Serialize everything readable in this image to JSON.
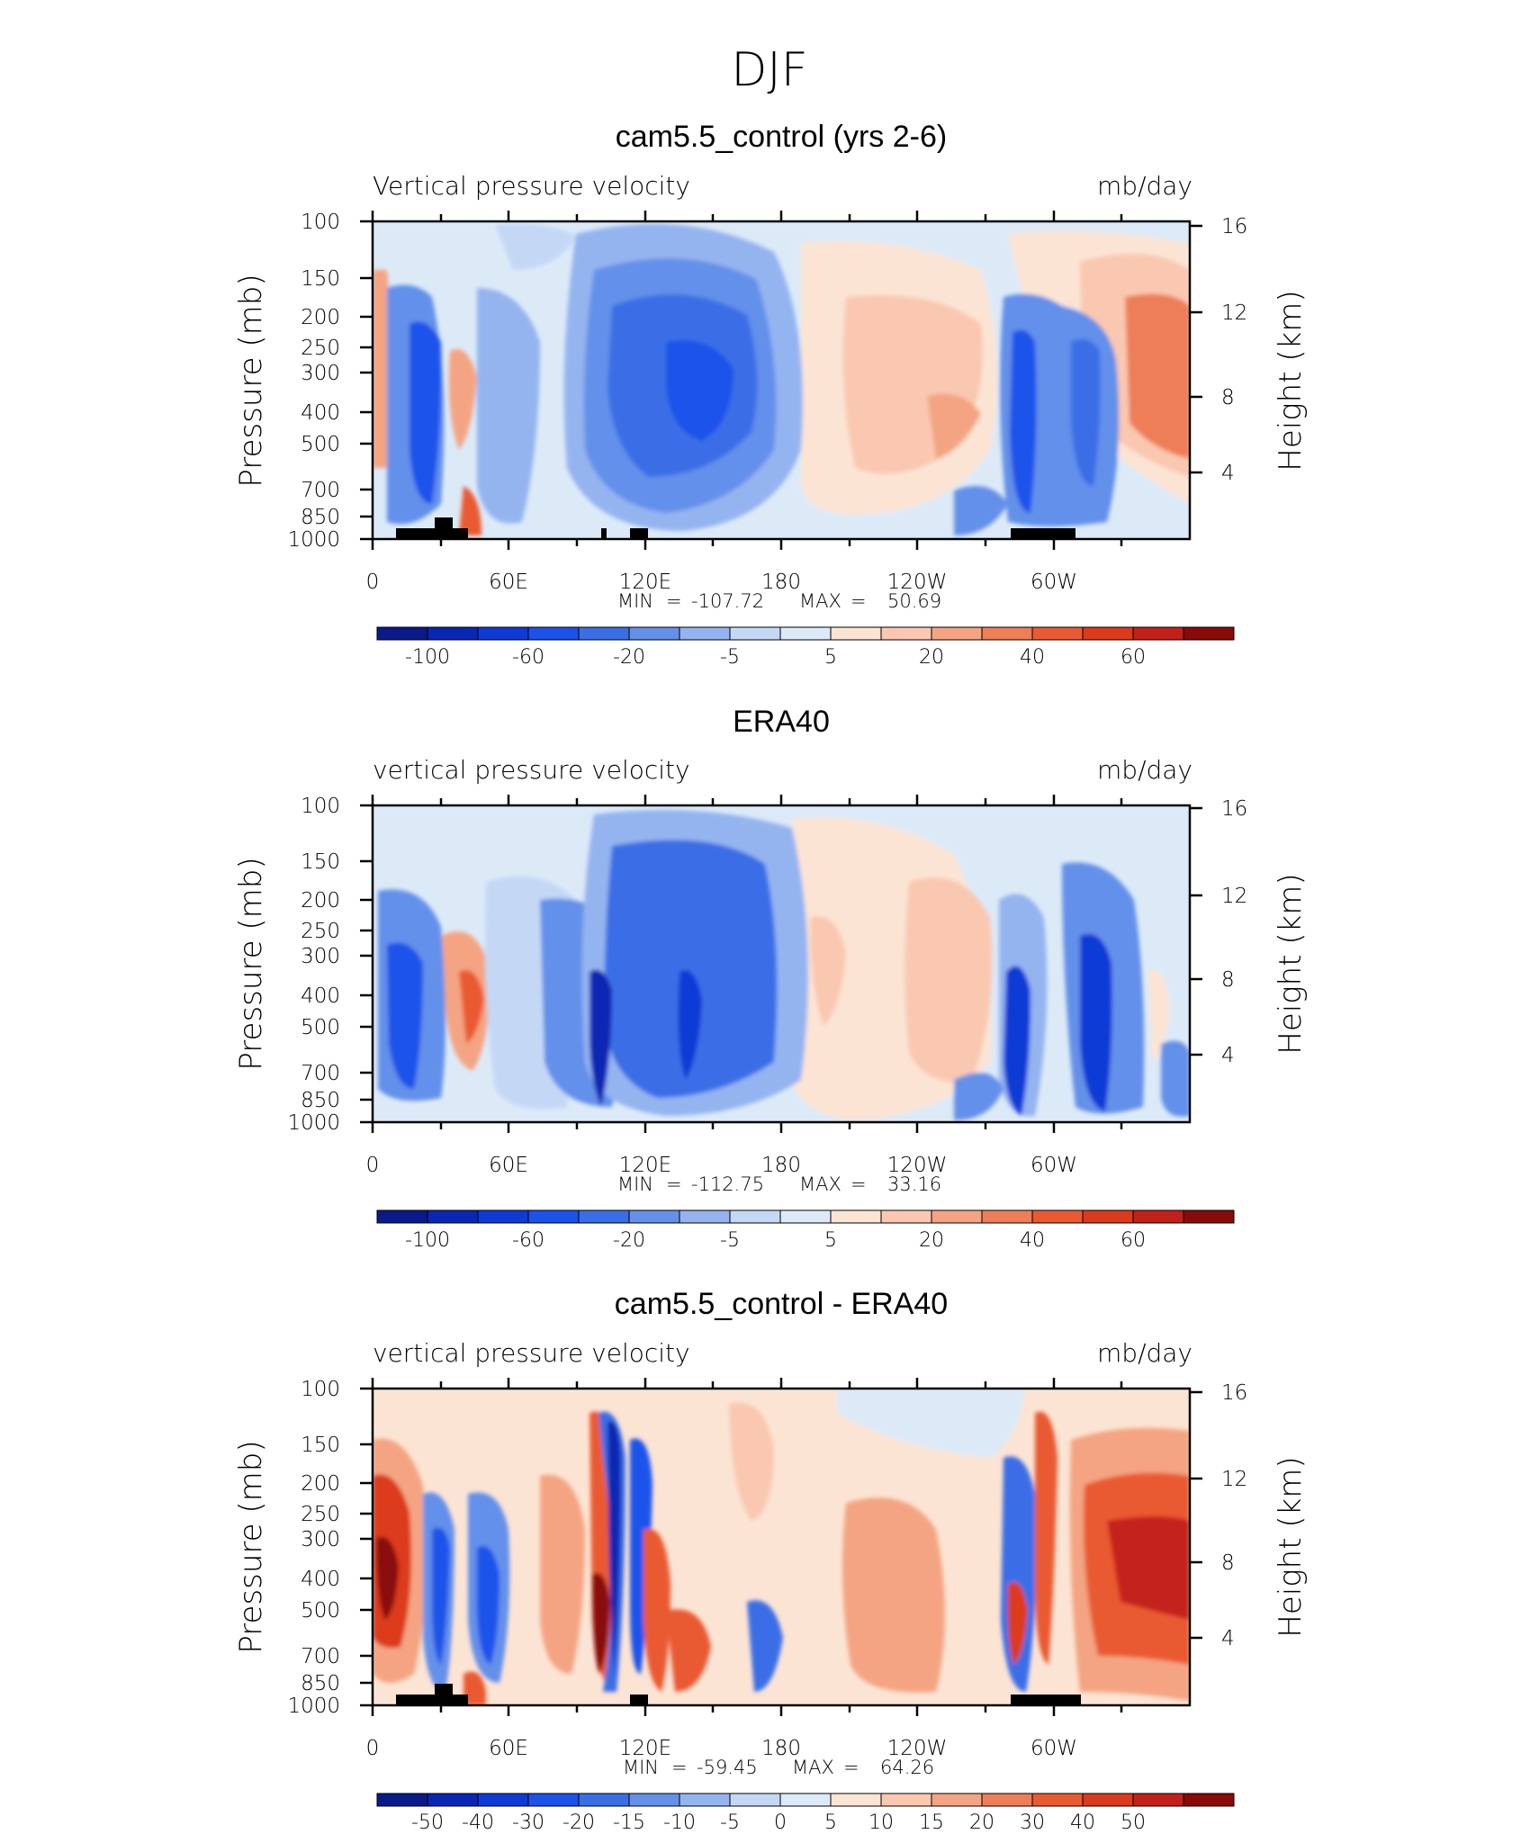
{
  "figure": {
    "title": "DJF"
  },
  "colors": {
    "scale": [
      "#0a1a8a",
      "#0a26b4",
      "#0f3ad6",
      "#1c52ea",
      "#3a6ee6",
      "#6490ea",
      "#94b4f0",
      "#c4d8f6",
      "#dceaf8",
      "#fce4d4",
      "#fac8b0",
      "#f4a482",
      "#ee7e58",
      "#ea5a32",
      "#dc3a1c",
      "#c4201a",
      "#8a0a0a"
    ]
  },
  "chart_data": [
    {
      "type": "heatmap",
      "title": "cam5.5_control (yrs 2-6)",
      "variable_label": "Vertical pressure velocity",
      "units": "mb/day",
      "xlabel": "",
      "ylabel": "Pressure (mb)",
      "ylabel_right": "Height (km)",
      "x_ticks": [
        "0",
        "60E",
        "120E",
        "180",
        "120W",
        "60W"
      ],
      "y_ticks": [
        "100",
        "150",
        "200",
        "250",
        "300",
        "400",
        "500",
        "700",
        "850",
        "1000"
      ],
      "y_ticks_right": [
        "16",
        "12",
        "8",
        "4"
      ],
      "ylim": [
        1000,
        100
      ],
      "y_scale": "log",
      "stats": {
        "min_label": "MIN",
        "min": "-107.72",
        "max_label": "MAX",
        "max": "50.69"
      },
      "colorbar_labels": [
        "-100",
        "-60",
        "-20",
        "-5",
        "5",
        "20",
        "40",
        "60"
      ],
      "cells": [
        {
          "x": 5,
          "y": 400,
          "v": 30
        },
        {
          "x": 25,
          "y": 350,
          "v": -60
        },
        {
          "x": 45,
          "y": 450,
          "v": 15
        },
        {
          "x": 70,
          "y": 500,
          "v": -30
        },
        {
          "x": 130,
          "y": 400,
          "v": -70
        },
        {
          "x": 155,
          "y": 400,
          "v": -90
        },
        {
          "x": 230,
          "y": 400,
          "v": 20
        },
        {
          "x": 255,
          "y": 450,
          "v": 35
        },
        {
          "x": 290,
          "y": 400,
          "v": -75
        },
        {
          "x": 300,
          "y": 400,
          "v": -80
        },
        {
          "x": 345,
          "y": 350,
          "v": 30
        }
      ]
    },
    {
      "type": "heatmap",
      "title": "ERA40",
      "variable_label": "vertical pressure velocity",
      "units": "mb/day",
      "xlabel": "",
      "ylabel": "Pressure (mb)",
      "ylabel_right": "Height (km)",
      "x_ticks": [
        "0",
        "60E",
        "120E",
        "180",
        "120W",
        "60W"
      ],
      "y_ticks": [
        "100",
        "150",
        "200",
        "250",
        "300",
        "400",
        "500",
        "700",
        "850",
        "1000"
      ],
      "y_ticks_right": [
        "16",
        "12",
        "8",
        "4"
      ],
      "ylim": [
        1000,
        100
      ],
      "y_scale": "log",
      "stats": {
        "min_label": "MIN",
        "min": "-112.75",
        "max_label": "MAX",
        "max": "33.16"
      },
      "colorbar_labels": [
        "-100",
        "-60",
        "-20",
        "-5",
        "5",
        "20",
        "40",
        "60"
      ],
      "cells": [
        {
          "x": 10,
          "y": 500,
          "v": -60
        },
        {
          "x": 45,
          "y": 450,
          "v": 30
        },
        {
          "x": 100,
          "y": 500,
          "v": -80
        },
        {
          "x": 140,
          "y": 500,
          "v": -70
        },
        {
          "x": 200,
          "y": 450,
          "v": 10
        },
        {
          "x": 245,
          "y": 450,
          "v": 15
        },
        {
          "x": 283,
          "y": 600,
          "v": -100
        },
        {
          "x": 315,
          "y": 600,
          "v": -90
        }
      ]
    },
    {
      "type": "heatmap",
      "title": "cam5.5_control - ERA40",
      "variable_label": "vertical pressure velocity",
      "units": "mb/day",
      "xlabel": "",
      "ylabel": "Pressure (mb)",
      "ylabel_right": "Height (km)",
      "x_ticks": [
        "0",
        "60E",
        "120E",
        "180",
        "120W",
        "60W"
      ],
      "y_ticks": [
        "100",
        "150",
        "200",
        "250",
        "300",
        "400",
        "500",
        "700",
        "850",
        "1000"
      ],
      "y_ticks_right": [
        "16",
        "12",
        "8",
        "4"
      ],
      "ylim": [
        1000,
        100
      ],
      "y_scale": "log",
      "stats": {
        "min_label": "MIN",
        "min": "-59.45",
        "max_label": "MAX",
        "max": "64.26"
      },
      "colorbar_labels": [
        "-50",
        "-40",
        "-30",
        "-20",
        "-15",
        "-10",
        "-5",
        "0",
        "5",
        "10",
        "15",
        "20",
        "30",
        "40",
        "50"
      ],
      "cells": [
        {
          "x": 12,
          "y": 400,
          "v": 55
        },
        {
          "x": 45,
          "y": 450,
          "v": -35
        },
        {
          "x": 100,
          "y": 600,
          "v": 45
        },
        {
          "x": 106,
          "y": 500,
          "v": -45
        },
        {
          "x": 118,
          "y": 500,
          "v": -40
        },
        {
          "x": 280,
          "y": 700,
          "v": 45
        },
        {
          "x": 285,
          "y": 500,
          "v": -40
        },
        {
          "x": 335,
          "y": 400,
          "v": 40
        }
      ]
    }
  ]
}
